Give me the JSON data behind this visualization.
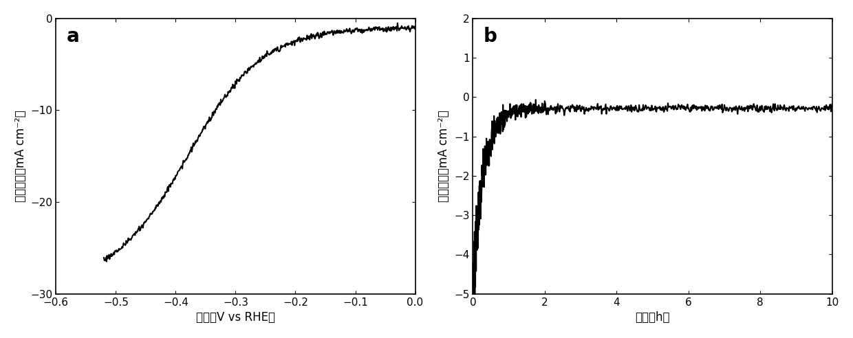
{
  "panel_a": {
    "label": "a",
    "xlabel": "电压（V vs RHE）",
    "ylabel": "电流密度（mA cm⁻²）",
    "xlim": [
      -0.6,
      0.0
    ],
    "ylim": [
      -30,
      0
    ],
    "xticks": [
      -0.6,
      -0.5,
      -0.4,
      -0.3,
      -0.2,
      -0.1,
      0.0
    ],
    "yticks": [
      0,
      -10,
      -20,
      -30
    ],
    "line_color": "#000000",
    "line_width": 1.5
  },
  "panel_b": {
    "label": "b",
    "xlabel": "时间（h）",
    "ylabel": "电流密度（mA cm⁻²）",
    "xlim": [
      0,
      10
    ],
    "ylim": [
      -5,
      2
    ],
    "xticks": [
      0,
      2,
      4,
      6,
      8,
      10
    ],
    "yticks": [
      2,
      1,
      0,
      -1,
      -2,
      -3,
      -4,
      -5
    ],
    "line_color": "#000000",
    "line_width": 1.5
  },
  "background_color": "#ffffff",
  "label_fontsize": 16,
  "tick_fontsize": 11,
  "axis_label_fontsize": 12
}
